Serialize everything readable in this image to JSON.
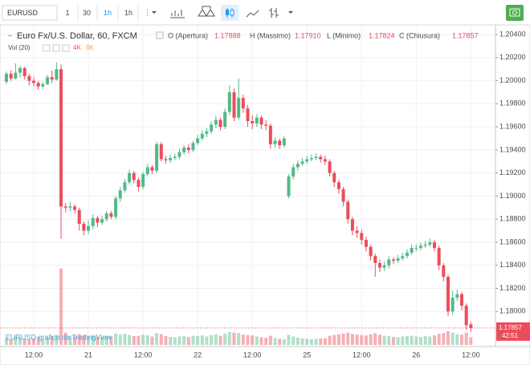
{
  "toolbar": {
    "symbol": "EURUSD",
    "intervals": [
      "1",
      "30",
      "1h",
      "1h"
    ]
  },
  "chart_data": {
    "type": "candlestick",
    "title": "Euro Fx/U.S. Dollar, 60, FXCM",
    "legend": [
      {
        "label": "O (Apertura)",
        "value_label": "1.17888"
      },
      {
        "label": "H (Massimo)",
        "value_label": "1.17910"
      },
      {
        "label": "L (Minimo)",
        "value_label": "1.17824"
      },
      {
        "label": "C (Chiusura)",
        "value_label": "1.17857"
      }
    ],
    "volume_legend": {
      "title": "Vol (20)",
      "values": [
        "4K",
        "8K"
      ]
    },
    "watermark": "EURUSD grafico da TradingView",
    "countdown": "42:51",
    "up_color": "#53b987",
    "down_color": "#eb4d5c",
    "categories": [
      null,
      null,
      null,
      null,
      null,
      null,
      "12:00",
      null,
      null,
      null,
      null,
      null,
      null,
      null,
      null,
      null,
      null,
      null,
      "21",
      null,
      null,
      null,
      null,
      null,
      null,
      null,
      null,
      null,
      null,
      null,
      "12:00",
      null,
      null,
      null,
      null,
      null,
      null,
      null,
      null,
      null,
      null,
      null,
      "22",
      null,
      null,
      null,
      null,
      null,
      null,
      null,
      null,
      null,
      null,
      null,
      "12:00",
      null,
      null,
      null,
      null,
      null,
      null,
      null,
      null,
      null,
      null,
      null,
      "25",
      null,
      null,
      null,
      null,
      null,
      null,
      null,
      null,
      null,
      null,
      null,
      "12:00",
      null,
      null,
      null,
      null,
      null,
      null,
      null,
      null,
      null,
      null,
      null,
      "26",
      null,
      null,
      null,
      null,
      null,
      null,
      null,
      null,
      null,
      null,
      null,
      "12:00"
    ],
    "open": [
      1.1999,
      1.2006,
      1.2002,
      1.2007,
      1.2011,
      1.2004,
      1.2,
      1.1998,
      1.1995,
      1.1997,
      1.2003,
      1.2001,
      1.201,
      1.1891,
      1.189,
      1.1891,
      1.1888,
      1.1876,
      1.187,
      1.1874,
      1.1881,
      1.1877,
      1.188,
      1.1885,
      1.1882,
      1.1898,
      1.1905,
      1.1912,
      1.192,
      1.1914,
      1.1908,
      1.1919,
      1.1925,
      1.1922,
      1.1945,
      1.1932,
      1.1931,
      1.1933,
      1.1934,
      1.1938,
      1.1942,
      1.194,
      1.1946,
      1.195,
      1.1954,
      1.1956,
      1.1962,
      1.1966,
      1.196,
      1.1973,
      1.199,
      1.1968,
      1.1985,
      1.1976,
      1.1965,
      1.1963,
      1.1968,
      1.1962,
      1.1961,
      1.1945,
      1.1948,
      1.1944,
      1.19,
      1.1917,
      1.1925,
      1.1928,
      1.193,
      1.1932,
      1.1933,
      1.1934,
      1.1932,
      1.193,
      1.192,
      1.1912,
      1.1906,
      1.1895,
      1.188,
      1.187,
      1.1868,
      1.1862,
      1.1856,
      1.1848,
      1.1842,
      1.1838,
      1.184,
      1.1845,
      1.1844,
      1.1846,
      1.1848,
      1.1851,
      1.1855,
      1.1855,
      1.1857,
      1.1858,
      1.186,
      1.1855,
      1.184,
      1.183,
      1.18,
      1.1812,
      1.1815,
      1.1805,
      1.17888
    ],
    "high": [
      1.2008,
      1.2009,
      1.2015,
      1.2013,
      1.2012,
      1.2006,
      1.2003,
      1.2,
      1.1999,
      1.2005,
      1.2009,
      1.2016,
      1.2014,
      1.1894,
      1.1895,
      1.1893,
      1.189,
      1.1878,
      1.1879,
      1.1884,
      1.1883,
      1.1883,
      1.1887,
      1.1887,
      1.19,
      1.1908,
      1.1915,
      1.1923,
      1.1922,
      1.1916,
      1.1921,
      1.1928,
      1.1927,
      1.1947,
      1.1947,
      1.1935,
      1.1936,
      1.1937,
      1.1941,
      1.1944,
      1.1945,
      1.1948,
      1.1953,
      1.1957,
      1.1959,
      1.1965,
      1.197,
      1.1968,
      1.1976,
      1.1996,
      1.1993,
      1.2002,
      1.1988,
      1.1979,
      1.197,
      1.1971,
      1.197,
      1.1966,
      1.1963,
      1.1951,
      1.195,
      1.1952,
      1.1919,
      1.1928,
      1.1931,
      1.1933,
      1.1935,
      1.1936,
      1.1937,
      1.1936,
      1.1935,
      1.1932,
      1.1922,
      1.1914,
      1.1908,
      1.1897,
      1.1882,
      1.1874,
      1.1871,
      1.1865,
      1.1858,
      1.185,
      1.1845,
      1.1843,
      1.1848,
      1.1847,
      1.1849,
      1.1851,
      1.1854,
      1.1858,
      1.1858,
      1.186,
      1.1861,
      1.1863,
      1.1862,
      1.1857,
      1.1842,
      1.1832,
      1.1818,
      1.1819,
      1.1817,
      1.1807,
      1.1791
    ],
    "low": [
      1.1997,
      1.2,
      1.2001,
      1.2003,
      1.2001,
      1.1996,
      1.1995,
      1.1992,
      1.1993,
      1.1996,
      1.1998,
      1.2,
      1.1863,
      1.1886,
      1.1887,
      1.1885,
      1.187,
      1.1866,
      1.1867,
      1.1871,
      1.1873,
      1.1875,
      1.1878,
      1.188,
      1.188,
      1.1895,
      1.1903,
      1.191,
      1.1911,
      1.1904,
      1.1906,
      1.1917,
      1.1919,
      1.192,
      1.193,
      1.1928,
      1.1929,
      1.1931,
      1.1932,
      1.1936,
      1.1937,
      1.1938,
      1.1944,
      1.1948,
      1.1951,
      1.1954,
      1.1959,
      1.1957,
      1.1958,
      1.197,
      1.1965,
      1.1966,
      1.1972,
      1.196,
      1.1958,
      1.196,
      1.1958,
      1.1957,
      1.1941,
      1.1942,
      1.1941,
      1.1942,
      1.1898,
      1.1914,
      1.1922,
      1.1926,
      1.1928,
      1.193,
      1.1931,
      1.1929,
      1.1927,
      1.1917,
      1.1908,
      1.1902,
      1.1891,
      1.1876,
      1.1866,
      1.1864,
      1.1858,
      1.1852,
      1.1844,
      1.183,
      1.1834,
      1.1835,
      1.1837,
      1.1841,
      1.1842,
      1.1844,
      1.1846,
      1.1849,
      1.1852,
      1.1853,
      1.1855,
      1.1856,
      1.1852,
      1.1836,
      1.1826,
      1.1796,
      1.1797,
      1.1809,
      1.1801,
      1.1784,
      1.17824
    ],
    "close": [
      1.2006,
      1.2002,
      1.2007,
      1.2011,
      1.2004,
      1.2,
      1.1998,
      1.1995,
      1.1997,
      1.2003,
      1.2001,
      1.201,
      1.1891,
      1.189,
      1.1891,
      1.1888,
      1.1876,
      1.187,
      1.1874,
      1.1881,
      1.1877,
      1.188,
      1.1885,
      1.1882,
      1.1898,
      1.1905,
      1.1912,
      1.192,
      1.1914,
      1.1908,
      1.1919,
      1.1925,
      1.1922,
      1.1945,
      1.1932,
      1.1931,
      1.1933,
      1.1934,
      1.1938,
      1.1942,
      1.194,
      1.1946,
      1.195,
      1.1954,
      1.1956,
      1.1962,
      1.1966,
      1.196,
      1.1973,
      1.199,
      1.1968,
      1.1985,
      1.1976,
      1.1965,
      1.1963,
      1.1968,
      1.1962,
      1.1961,
      1.1945,
      1.1948,
      1.1944,
      1.195,
      1.1917,
      1.1925,
      1.1928,
      1.193,
      1.1932,
      1.1933,
      1.1934,
      1.1932,
      1.193,
      1.192,
      1.1912,
      1.1906,
      1.1895,
      1.188,
      1.187,
      1.1868,
      1.1862,
      1.1856,
      1.1848,
      1.1842,
      1.1838,
      1.184,
      1.1845,
      1.1844,
      1.1846,
      1.1848,
      1.1851,
      1.1855,
      1.1855,
      1.1857,
      1.1858,
      1.186,
      1.1855,
      1.184,
      1.183,
      1.18,
      1.1812,
      1.1815,
      1.1805,
      1.1788,
      1.17857
    ],
    "volume": [
      1800,
      1500,
      2200,
      1900,
      1600,
      1400,
      1700,
      2100,
      1500,
      1800,
      2300,
      2600,
      20000,
      3200,
      2400,
      2200,
      2800,
      2600,
      2300,
      2500,
      2100,
      2000,
      2400,
      2200,
      3000,
      2700,
      2900,
      2600,
      2300,
      2400,
      2700,
      2500,
      2200,
      3100,
      2800,
      2300,
      2100,
      2000,
      2200,
      2300,
      2100,
      2400,
      2300,
      2500,
      2200,
      2600,
      2800,
      2400,
      3000,
      3400,
      3200,
      3100,
      2700,
      2600,
      2500,
      2200,
      2000,
      1900,
      2400,
      1800,
      1600,
      1500,
      2600,
      2200,
      1900,
      1700,
      1600,
      1500,
      1600,
      1700,
      1800,
      2400,
      2600,
      2800,
      3000,
      3200,
      2900,
      2700,
      2600,
      2500,
      2800,
      3100,
      2700,
      2400,
      2300,
      2100,
      2000,
      2200,
      2300,
      2400,
      2200,
      2100,
      2300,
      2200,
      2500,
      2900,
      3100,
      3600,
      3300,
      2800,
      2700,
      3200,
      2000
    ],
    "volume_lim": [
      0,
      21000
    ],
    "ylim": [
      1.1771,
      1.2047
    ],
    "yticks": [
      {
        "value": 1.204,
        "label": "1.20400"
      },
      {
        "value": 1.202,
        "label": "1.20200"
      },
      {
        "value": 1.2,
        "label": "1.20000"
      },
      {
        "value": 1.198,
        "label": "1.19800"
      },
      {
        "value": 1.196,
        "label": "1.19600"
      },
      {
        "value": 1.194,
        "label": "1.19400"
      },
      {
        "value": 1.192,
        "label": "1.19200"
      },
      {
        "value": 1.19,
        "label": "1.19000"
      },
      {
        "value": 1.188,
        "label": "1.18800"
      },
      {
        "value": 1.186,
        "label": "1.18600"
      },
      {
        "value": 1.184,
        "label": "1.18400"
      },
      {
        "value": 1.182,
        "label": "1.18200"
      },
      {
        "value": 1.18,
        "label": "1.18000"
      }
    ],
    "grid": true
  }
}
